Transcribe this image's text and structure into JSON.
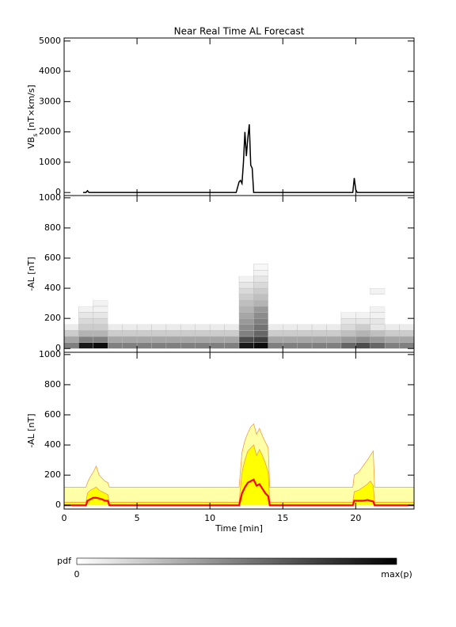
{
  "chart_data": [
    {
      "type": "line",
      "title": "Near Real Time AL Forecast",
      "ylabel": [
        "VB",
        "s",
        " [nT×km/s]"
      ],
      "color": "#000000",
      "xlim": [
        0,
        24
      ],
      "xticks": [
        0,
        5,
        10,
        15,
        20
      ],
      "ylim": [
        -100,
        5100
      ],
      "yticks": [
        0,
        1000,
        2000,
        3000,
        4000,
        5000
      ],
      "x": [
        1.3,
        1.5,
        1.6,
        1.7,
        1.9,
        11.8,
        12.0,
        12.1,
        12.2,
        12.3,
        12.4,
        12.5,
        12.6,
        12.7,
        12.8,
        12.9,
        13.0,
        13.1,
        19.8,
        19.9,
        20.0,
        20.1,
        24
      ],
      "values": [
        0,
        0,
        60,
        0,
        0,
        0,
        350,
        400,
        300,
        1000,
        2000,
        1200,
        1800,
        2250,
        900,
        800,
        0,
        0,
        0,
        480,
        100,
        0,
        0
      ]
    },
    {
      "type": "heatmap",
      "ylabel": "-AL [nT]",
      "xlim": [
        0,
        24
      ],
      "xticks": [
        0,
        5,
        10,
        15,
        20
      ],
      "ylim": [
        -25,
        1015
      ],
      "yticks": [
        0,
        200,
        400,
        600,
        800,
        1000
      ],
      "x_bins": [
        0,
        1,
        2,
        3,
        4,
        5,
        6,
        7,
        8,
        9,
        10,
        11,
        12,
        13,
        14,
        15,
        16,
        17,
        18,
        19,
        20,
        21,
        22,
        23,
        24
      ],
      "y_bins": [
        0,
        40,
        80,
        120,
        160,
        200,
        240,
        280,
        320,
        360,
        400,
        440,
        480,
        520,
        560
      ],
      "z": [
        [
          0.5,
          0.35,
          0.2,
          0.08,
          0,
          0,
          0,
          0,
          0,
          0,
          0,
          0,
          0,
          0
        ],
        [
          0.9,
          0.5,
          0.3,
          0.2,
          0.15,
          0.1,
          0.05,
          0,
          0,
          0,
          0,
          0,
          0,
          0
        ],
        [
          0.95,
          0.5,
          0.3,
          0.2,
          0.15,
          0.1,
          0.05,
          0.05,
          0,
          0,
          0,
          0,
          0,
          0
        ],
        [
          0.5,
          0.35,
          0.2,
          0.08,
          0,
          0,
          0,
          0,
          0,
          0,
          0,
          0,
          0,
          0
        ],
        [
          0.5,
          0.35,
          0.2,
          0.08,
          0,
          0,
          0,
          0,
          0,
          0,
          0,
          0,
          0,
          0
        ],
        [
          0.5,
          0.35,
          0.2,
          0.08,
          0,
          0,
          0,
          0,
          0,
          0,
          0,
          0,
          0,
          0
        ],
        [
          0.5,
          0.35,
          0.2,
          0.08,
          0,
          0,
          0,
          0,
          0,
          0,
          0,
          0,
          0,
          0
        ],
        [
          0.5,
          0.35,
          0.2,
          0.08,
          0,
          0,
          0,
          0,
          0,
          0,
          0,
          0,
          0,
          0
        ],
        [
          0.5,
          0.35,
          0.2,
          0.08,
          0,
          0,
          0,
          0,
          0,
          0,
          0,
          0,
          0,
          0
        ],
        [
          0.5,
          0.35,
          0.2,
          0.08,
          0,
          0,
          0,
          0,
          0,
          0,
          0,
          0,
          0,
          0
        ],
        [
          0.5,
          0.35,
          0.2,
          0.08,
          0,
          0,
          0,
          0,
          0,
          0,
          0,
          0,
          0,
          0
        ],
        [
          0.5,
          0.35,
          0.2,
          0.08,
          0,
          0,
          0,
          0,
          0,
          0,
          0,
          0,
          0,
          0
        ],
        [
          0.9,
          0.7,
          0.5,
          0.45,
          0.4,
          0.35,
          0.3,
          0.25,
          0.2,
          0.15,
          0.1,
          0.05,
          0,
          0
        ],
        [
          0.95,
          0.75,
          0.6,
          0.55,
          0.5,
          0.45,
          0.4,
          0.3,
          0.25,
          0.2,
          0.15,
          0.1,
          0.05,
          0.03
        ],
        [
          0.5,
          0.35,
          0.2,
          0.08,
          0,
          0,
          0,
          0,
          0,
          0,
          0,
          0,
          0,
          0
        ],
        [
          0.5,
          0.35,
          0.2,
          0.08,
          0,
          0,
          0,
          0,
          0,
          0,
          0,
          0,
          0,
          0
        ],
        [
          0.5,
          0.35,
          0.2,
          0.08,
          0,
          0,
          0,
          0,
          0,
          0,
          0,
          0,
          0,
          0
        ],
        [
          0.5,
          0.35,
          0.2,
          0.08,
          0,
          0,
          0,
          0,
          0,
          0,
          0,
          0,
          0,
          0
        ],
        [
          0.5,
          0.35,
          0.2,
          0.08,
          0,
          0,
          0,
          0,
          0,
          0,
          0,
          0,
          0,
          0
        ],
        [
          0.6,
          0.4,
          0.25,
          0.15,
          0.1,
          0.05,
          0,
          0,
          0,
          0,
          0,
          0,
          0,
          0
        ],
        [
          0.7,
          0.45,
          0.3,
          0.2,
          0.1,
          0.05,
          0,
          0,
          0,
          0,
          0,
          0,
          0,
          0
        ],
        [
          0.6,
          0.4,
          0.25,
          0.1,
          0.1,
          0.05,
          0.05,
          0,
          0,
          0.05,
          0,
          0,
          0,
          0
        ],
        [
          0.5,
          0.35,
          0.2,
          0.08,
          0,
          0,
          0,
          0,
          0,
          0,
          0,
          0,
          0,
          0
        ],
        [
          0.5,
          0.35,
          0.2,
          0.08,
          0,
          0,
          0,
          0,
          0,
          0,
          0,
          0,
          0,
          0
        ]
      ]
    },
    {
      "type": "area",
      "ylabel": "-AL [nT]",
      "xlabel": "Time [min]",
      "xlim": [
        0,
        24
      ],
      "xticks": [
        0,
        5,
        10,
        15,
        20
      ],
      "ylim": [
        -25,
        1015
      ],
      "yticks": [
        0,
        200,
        400,
        600,
        800,
        1000
      ],
      "x": [
        0,
        1.5,
        1.6,
        1.8,
        2.0,
        2.2,
        2.4,
        2.6,
        2.8,
        3.0,
        3.1,
        12.0,
        12.2,
        12.4,
        12.6,
        12.8,
        13.0,
        13.2,
        13.4,
        13.6,
        13.8,
        14.0,
        14.1,
        19.8,
        19.9,
        20.2,
        20.5,
        20.8,
        21.0,
        21.2,
        21.3,
        24
      ],
      "series": [
        {
          "color": "#ffffa8",
          "edge": "#f0a040",
          "values": [
            120,
            120,
            150,
            190,
            220,
            260,
            200,
            180,
            160,
            150,
            120,
            120,
            350,
            430,
            480,
            520,
            540,
            470,
            510,
            460,
            420,
            380,
            120,
            120,
            200,
            220,
            260,
            300,
            330,
            360,
            120,
            120
          ]
        },
        {
          "color": "#ffff00",
          "edge": "#f0a040",
          "values": [
            20,
            20,
            80,
            100,
            110,
            120,
            100,
            90,
            80,
            70,
            20,
            20,
            220,
            300,
            360,
            380,
            400,
            330,
            370,
            330,
            280,
            220,
            20,
            20,
            90,
            100,
            120,
            140,
            160,
            130,
            20,
            20
          ]
        },
        {
          "color": "#ff0000",
          "edge": "#ff0000",
          "values": [
            0,
            0,
            30,
            40,
            50,
            50,
            45,
            40,
            30,
            30,
            0,
            0,
            80,
            120,
            150,
            160,
            170,
            130,
            140,
            110,
            80,
            60,
            0,
            0,
            30,
            30,
            30,
            35,
            30,
            25,
            0,
            0
          ]
        }
      ]
    }
  ],
  "colorbar": {
    "label": "pdf",
    "min_label": "0",
    "max_label": "max(p)"
  }
}
